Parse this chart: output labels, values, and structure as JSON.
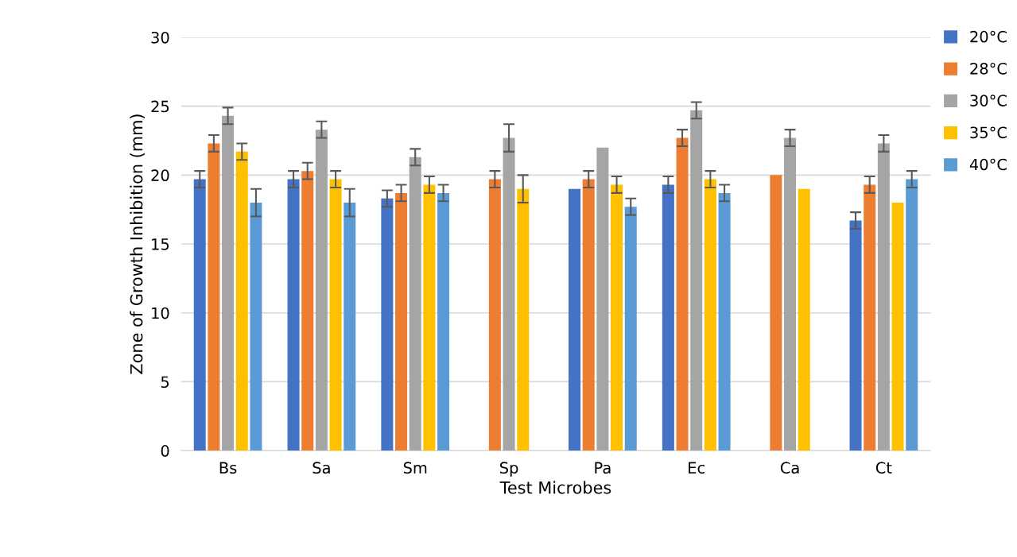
{
  "chart_data": {
    "type": "bar",
    "xlabel": "Test Microbes",
    "ylabel": "Zone of Growth Inhibition (mm)",
    "categories": [
      "Bs",
      "Sa",
      "Sm",
      "Sp",
      "Pa",
      "Ec",
      "Ca",
      "Ct"
    ],
    "ylim": [
      0,
      30
    ],
    "yticks": [
      0,
      5,
      10,
      15,
      20,
      25,
      30
    ],
    "grid": "y",
    "legend": "top right",
    "series": [
      {
        "name": "20°C",
        "color": "#4472c4",
        "values": [
          19.7,
          19.7,
          18.3,
          0,
          19.0,
          19.3,
          0,
          16.7
        ],
        "errors": [
          0.6,
          0.6,
          0.6,
          null,
          null,
          0.6,
          null,
          0.6
        ]
      },
      {
        "name": "28°C",
        "color": "#ed7d31",
        "values": [
          22.3,
          20.3,
          18.7,
          19.7,
          19.7,
          22.7,
          20.0,
          19.3
        ],
        "errors": [
          0.6,
          0.6,
          0.6,
          0.6,
          0.6,
          0.6,
          null,
          0.6
        ]
      },
      {
        "name": "30°C",
        "color": "#a5a5a5",
        "values": [
          24.3,
          23.3,
          21.3,
          22.7,
          22.0,
          24.7,
          22.7,
          22.3
        ],
        "errors": [
          0.6,
          0.6,
          0.6,
          1.0,
          null,
          0.6,
          0.6,
          0.6
        ]
      },
      {
        "name": "35°C",
        "color": "#ffc000",
        "values": [
          21.7,
          19.7,
          19.3,
          19.0,
          19.3,
          19.7,
          19.0,
          18.0
        ],
        "errors": [
          0.6,
          0.6,
          0.6,
          1.0,
          0.6,
          0.6,
          null,
          null
        ]
      },
      {
        "name": "40°C",
        "color": "#5b9bd5",
        "values": [
          18.0,
          18.0,
          18.7,
          0,
          17.7,
          18.7,
          0,
          19.7
        ],
        "errors": [
          1.0,
          1.0,
          0.6,
          null,
          0.6,
          0.6,
          null,
          0.6
        ]
      }
    ]
  }
}
